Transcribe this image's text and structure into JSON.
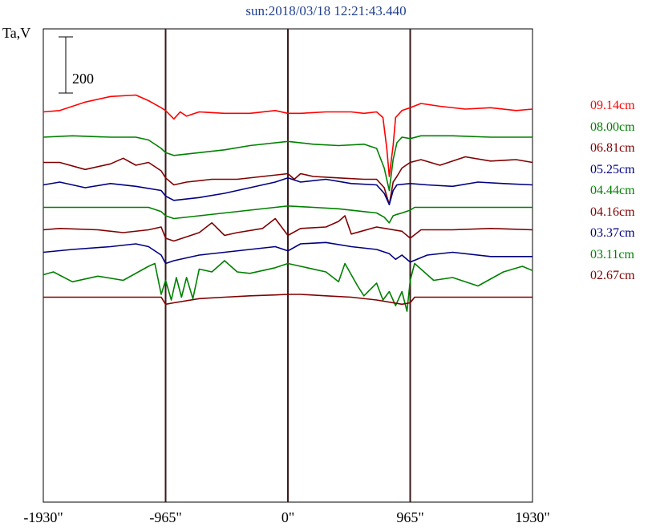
{
  "title": "sun:2018/03/18 12:21:43.440",
  "ylabel": "Ta,V",
  "scale_bar_label": "200",
  "chart_data": {
    "type": "line",
    "x_range": [
      -1930,
      1930
    ],
    "x_ticks": [
      {
        "value": -1930,
        "label": "-1930\""
      },
      {
        "value": -965,
        "label": "-965\""
      },
      {
        "value": 0,
        "label": "0\""
      },
      {
        "value": 965,
        "label": "965\""
      },
      {
        "value": 1930,
        "label": "1930\""
      }
    ],
    "vertical_markers": [
      -965,
      0,
      965
    ],
    "scale_bar_value": 200,
    "grid": false,
    "series": [
      {
        "name": "09.14cm",
        "color": "#ff0000",
        "baseline": 450,
        "x": [
          -1930,
          -1800,
          -1600,
          -1400,
          -1200,
          -1100,
          -1000,
          -965,
          -900,
          -850,
          -800,
          -700,
          -500,
          -300,
          -100,
          0,
          100,
          300,
          500,
          600,
          700,
          750,
          780,
          800,
          830,
          850,
          900,
          965,
          1050,
          1200,
          1400,
          1600,
          1800,
          1930
        ],
        "y": [
          0,
          5,
          35,
          55,
          60,
          40,
          15,
          5,
          -25,
          0,
          -15,
          0,
          -5,
          -5,
          5,
          -5,
          -5,
          0,
          0,
          -5,
          0,
          -20,
          -130,
          -230,
          -120,
          -20,
          5,
          15,
          30,
          20,
          10,
          15,
          5,
          10
        ]
      },
      {
        "name": "08.00cm",
        "color": "#008000",
        "baseline": 360,
        "x": [
          -1930,
          -1700,
          -1400,
          -1200,
          -1100,
          -1000,
          -965,
          -900,
          -700,
          -500,
          -300,
          0,
          200,
          400,
          600,
          700,
          760,
          800,
          830,
          860,
          900,
          965,
          1050,
          1300,
          1600,
          1930
        ],
        "y": [
          0,
          5,
          0,
          0,
          -10,
          -40,
          -55,
          -65,
          -55,
          -45,
          -30,
          -15,
          -25,
          -30,
          -25,
          -40,
          -110,
          -190,
          -80,
          -20,
          0,
          -5,
          5,
          5,
          0,
          0
        ]
      },
      {
        "name": "06.81cm",
        "color": "#800000",
        "baseline": 270,
        "x": [
          -1930,
          -1800,
          -1600,
          -1400,
          -1300,
          -1200,
          -1100,
          -1000,
          -965,
          -900,
          -800,
          -600,
          -400,
          -200,
          0,
          50,
          100,
          200,
          400,
          600,
          700,
          760,
          800,
          830,
          860,
          900,
          965,
          1050,
          1200,
          1400,
          1600,
          1800,
          1930
        ],
        "y": [
          0,
          0,
          -25,
          -5,
          15,
          -10,
          0,
          -30,
          -55,
          -80,
          -70,
          -60,
          -60,
          -50,
          -40,
          -60,
          -40,
          -50,
          -55,
          -60,
          -60,
          -90,
          -150,
          -70,
          -50,
          -20,
          0,
          10,
          -10,
          20,
          5,
          10,
          0
        ]
      },
      {
        "name": "05.25cm",
        "color": "#000080",
        "baseline": 190,
        "x": [
          -1930,
          -1800,
          -1600,
          -1400,
          -1200,
          -1000,
          -965,
          -900,
          -700,
          -500,
          -300,
          -100,
          0,
          100,
          300,
          500,
          700,
          760,
          800,
          830,
          860,
          965,
          1100,
          1300,
          1500,
          1700,
          1930
        ],
        "y": [
          0,
          10,
          -10,
          5,
          -5,
          -20,
          -40,
          -55,
          -45,
          -30,
          -10,
          10,
          25,
          10,
          20,
          5,
          0,
          -30,
          -70,
          -20,
          0,
          5,
          0,
          -5,
          10,
          5,
          0
        ]
      },
      {
        "name": "04.44cm",
        "color": "#008000",
        "baseline": 110,
        "x": [
          -1930,
          -1200,
          -1100,
          -1000,
          -965,
          -900,
          -700,
          -500,
          -300,
          -100,
          0,
          200,
          400,
          600,
          700,
          760,
          800,
          830,
          860,
          900,
          965,
          1000,
          1930
        ],
        "y": [
          0,
          0,
          0,
          -15,
          -30,
          -40,
          -30,
          -20,
          -10,
          0,
          5,
          0,
          -5,
          -15,
          -20,
          -35,
          -55,
          -30,
          -25,
          -20,
          -10,
          0,
          0
        ]
      },
      {
        "name": "04.16cm",
        "color": "#800000",
        "baseline": 30,
        "x": [
          -1930,
          -1800,
          -1500,
          -1300,
          -1100,
          -1000,
          -965,
          -900,
          -700,
          -600,
          -500,
          -400,
          -200,
          -100,
          0,
          100,
          300,
          400,
          450,
          500,
          700,
          900,
          965,
          1050,
          1300,
          1600,
          1930
        ],
        "y": [
          0,
          5,
          0,
          -10,
          0,
          10,
          -30,
          -40,
          -10,
          25,
          -20,
          -10,
          5,
          40,
          -20,
          5,
          10,
          30,
          50,
          -15,
          10,
          -5,
          -30,
          0,
          0,
          5,
          0
        ]
      },
      {
        "name": "03.37cm",
        "color": "#000080",
        "baseline": -50,
        "x": [
          -1930,
          -1700,
          -1400,
          -1200,
          -1100,
          -1000,
          -965,
          -900,
          -700,
          -500,
          -300,
          -100,
          0,
          100,
          300,
          500,
          700,
          800,
          850,
          900,
          965,
          1100,
          1300,
          1600,
          1930
        ],
        "y": [
          0,
          10,
          20,
          30,
          20,
          -10,
          -40,
          -30,
          -10,
          0,
          10,
          20,
          5,
          30,
          35,
          20,
          10,
          -5,
          -25,
          -10,
          -35,
          -10,
          0,
          -15,
          -15
        ]
      },
      {
        "name": "03.11cm",
        "color": "#008000",
        "baseline": -130,
        "x": [
          -1930,
          -1850,
          -1700,
          -1500,
          -1300,
          -1100,
          -1050,
          -1000,
          -965,
          -920,
          -880,
          -840,
          -800,
          -750,
          -700,
          -600,
          -500,
          -400,
          -300,
          -100,
          0,
          100,
          300,
          400,
          450,
          550,
          600,
          700,
          750,
          800,
          850,
          900,
          940,
          965,
          1000,
          1050,
          1150,
          1300,
          1500,
          1700,
          1850,
          1930
        ],
        "y": [
          0,
          10,
          -25,
          -5,
          -20,
          30,
          40,
          -70,
          -20,
          -90,
          -10,
          -80,
          -10,
          -85,
          20,
          10,
          50,
          10,
          5,
          25,
          40,
          30,
          10,
          -25,
          40,
          -40,
          -75,
          -30,
          -90,
          -60,
          -110,
          -60,
          -130,
          -20,
          40,
          20,
          -20,
          -10,
          -40,
          10,
          30,
          15
        ]
      },
      {
        "name": "02.67cm",
        "color": "#800000",
        "baseline": -210,
        "x": [
          -1930,
          -1000,
          -965,
          -900,
          -700,
          -500,
          -300,
          -100,
          0,
          100,
          300,
          500,
          700,
          900,
          965,
          1000,
          1930
        ],
        "y": [
          0,
          0,
          -25,
          -20,
          -5,
          0,
          5,
          8,
          10,
          10,
          5,
          0,
          -10,
          -25,
          -20,
          0,
          0
        ]
      }
    ]
  }
}
